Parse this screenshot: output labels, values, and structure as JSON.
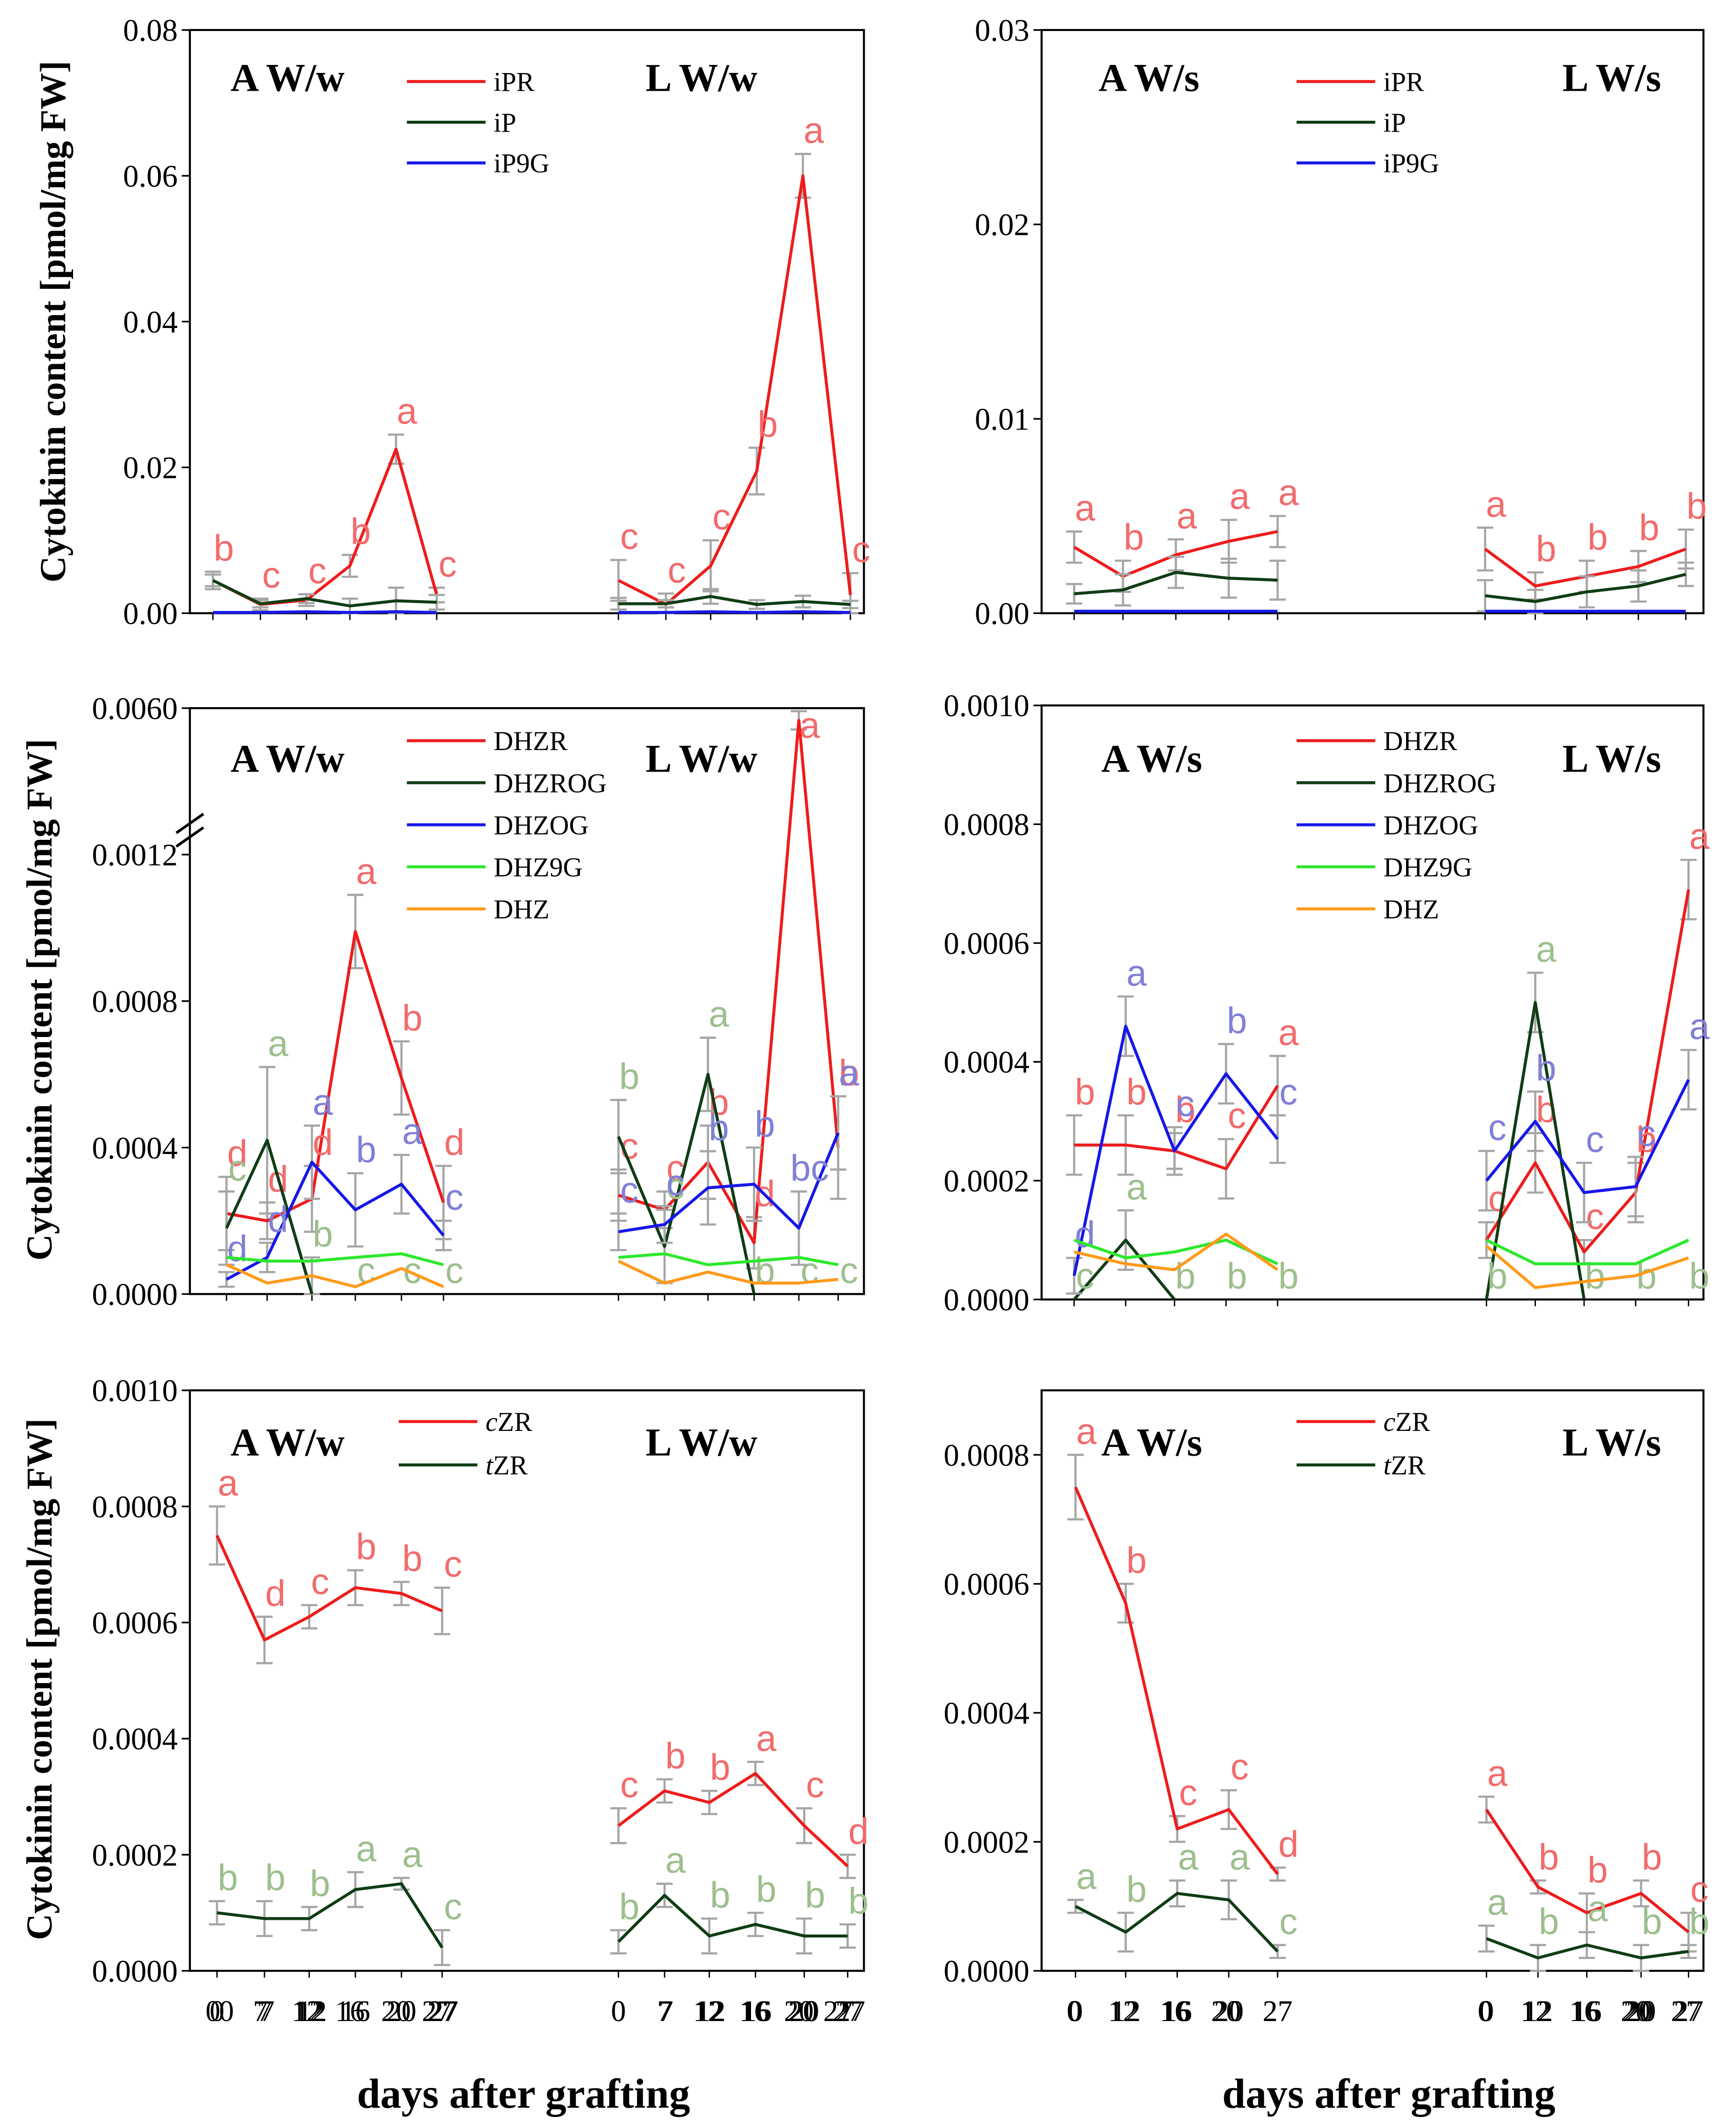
{
  "xlabel": "days after grafting",
  "ylabel": "Cytokinin content [pmol/mg FW]",
  "colors": {
    "red": "#ee1c1c",
    "darkgreen": "#0f3d14",
    "blue": "#1717e8",
    "lime": "#2de82d",
    "orange": "#ff9a1a",
    "err": "#a6a6a6",
    "lab_red": "#f26b6b",
    "lab_green": "#9dbf8e",
    "lab_blue": "#8080d8"
  },
  "chart_data": [
    {
      "type": "line",
      "panel": "iP-type, W/w",
      "title_a": "A W/w",
      "title_l": "L W/w",
      "ylim": [
        0,
        0.08
      ],
      "yticks": [
        "0.00",
        "0.02",
        "0.04",
        "0.06",
        "0.08"
      ],
      "yvals": [
        0,
        0.02,
        0.04,
        0.06,
        0.08
      ],
      "categories_a": [
        "0",
        "7",
        "12",
        "16",
        "20",
        "27"
      ],
      "categories_l": [
        "0",
        "7",
        "12",
        "16",
        "20",
        "27"
      ],
      "legend": [
        "iPR",
        "iP",
        "iP9G"
      ],
      "series": [
        {
          "name": "iPR",
          "color": "red",
          "a": [
            0.0045,
            0.0012,
            0.0018,
            0.0065,
            0.0225,
            0.0025
          ],
          "l": [
            0.0045,
            0.0012,
            0.0065,
            0.0195,
            0.06,
            0.0025
          ],
          "err_a": [
            0.0012,
            0.0008,
            0.0008,
            0.0015,
            0.002,
            0.001
          ],
          "err_l": [
            0.0028,
            0.0015,
            0.0035,
            0.0032,
            0.003,
            0.003
          ],
          "labels_a": [
            "b",
            "c",
            "c",
            "b",
            "a",
            "c"
          ],
          "labels_l": [
            "c",
            "c",
            "c",
            "b",
            "a",
            "c"
          ]
        },
        {
          "name": "iP",
          "color": "darkgreen",
          "a": [
            0.0045,
            0.0013,
            0.002,
            0.001,
            0.0017,
            0.0015
          ],
          "l": [
            0.0013,
            0.0013,
            0.0023,
            0.0012,
            0.0016,
            0.0012
          ],
          "err_a": [
            0.0008,
            0.0005,
            0.0006,
            0.001,
            0.0018,
            0.001
          ],
          "err_l": [
            0.0008,
            0.0005,
            0.001,
            0.0006,
            0.0008,
            0.0005
          ]
        },
        {
          "name": "iP9G",
          "color": "blue",
          "a": [
            0.0001,
            0.0001,
            0.0002,
            0.0001,
            0.0002,
            0.0001
          ],
          "l": [
            0.0001,
            0.0001,
            0.0002,
            0.0001,
            0.0002,
            0.0001
          ]
        }
      ]
    },
    {
      "type": "line",
      "panel": "iP-type, W/s",
      "title_a": "A W/s",
      "title_l": "L W/s",
      "ylim": [
        0,
        0.03
      ],
      "yticks": [
        "0.00",
        "0.01",
        "0.02",
        "0.03"
      ],
      "yvals": [
        0,
        0.01,
        0.02,
        0.03
      ],
      "categories_a": [
        "0",
        "12",
        "16",
        "20",
        "27"
      ],
      "categories_l": [
        "0",
        "12",
        "16",
        "20",
        "27"
      ],
      "legend": [
        "iPR",
        "iP",
        "iP9G"
      ],
      "series": [
        {
          "name": "iPR",
          "color": "red",
          "a": [
            0.0034,
            0.0019,
            0.003,
            0.0037,
            0.0042
          ],
          "l": [
            0.0033,
            0.0014,
            0.0019,
            0.0024,
            0.0033
          ],
          "err_a": [
            0.0008,
            0.0008,
            0.0008,
            0.0011,
            0.0008
          ],
          "err_l": [
            0.0011,
            0.0007,
            0.0008,
            0.0008,
            0.001
          ],
          "labels_a": [
            "a",
            "b",
            "a",
            "a",
            "a"
          ],
          "labels_l": [
            "a",
            "b",
            "b",
            "b",
            "b"
          ]
        },
        {
          "name": "iP",
          "color": "darkgreen",
          "a": [
            0.001,
            0.0012,
            0.0021,
            0.0018,
            0.0017
          ],
          "l": [
            0.0009,
            0.0006,
            0.0011,
            0.0014,
            0.002
          ],
          "err_a": [
            0.0005,
            0.0008,
            0.0008,
            0.001,
            0.001
          ],
          "err_l": [
            0.0008,
            0.0006,
            0.0008,
            0.0008,
            0.0006
          ]
        },
        {
          "name": "iP9G",
          "color": "blue",
          "a": [
            0.0001,
            0.0001,
            0.0001,
            0.0001,
            0.0001
          ],
          "l": [
            0.0001,
            0.0001,
            0.0001,
            0.0001,
            0.0001
          ]
        }
      ]
    },
    {
      "type": "line",
      "panel": "DHZ-type, W/w (broken y axis)",
      "title_a": "A W/w",
      "title_l": "L W/w",
      "ylim": [
        0,
        0.006
      ],
      "axis_break": [
        0.0012,
        0.006
      ],
      "yticks": [
        "0.0000",
        "0.0004",
        "0.0008",
        "0.0012",
        "0.0060"
      ],
      "yvals": [
        0,
        0.0004,
        0.0008,
        0.0012,
        0.006
      ],
      "categories_a": [
        "0",
        "7",
        "12",
        "16",
        "20",
        "27"
      ],
      "categories_l": [
        "0",
        "7",
        "12",
        "16",
        "20",
        "27"
      ],
      "legend": [
        "DHZR",
        "DHZROG",
        "DHZOG",
        "DHZ9G",
        "DHZ"
      ],
      "series": [
        {
          "name": "DHZR",
          "color": "red",
          "a": [
            0.00022,
            0.0002,
            0.00026,
            0.00099,
            0.00059,
            0.00025
          ],
          "l": [
            0.00027,
            0.00023,
            0.00036,
            0.00014,
            0.0056,
            0.0004
          ],
          "err_a": [
            0.0001,
            5e-05,
            9e-05,
            0.0001,
            0.0001,
            0.0001
          ],
          "err_l": [
            7e-05,
            5e-05,
            0.0001,
            7e-05,
            0.0003,
            0.00014
          ],
          "labels_a": [
            "d",
            "d",
            "d",
            "a",
            "b",
            "d"
          ],
          "labels_l": [
            "c",
            "c",
            "b",
            "d",
            "a",
            "b"
          ]
        },
        {
          "name": "DHZROG",
          "color": "darkgreen",
          "a": [
            0.00018,
            0.00042,
            0.0,
            null,
            null,
            null
          ],
          "l": [
            0.00043,
            0.00013,
            0.0006,
            0.0,
            null,
            null
          ],
          "err_a": [
            0.0001,
            0.0002,
            0.0001,
            0,
            0,
            0
          ],
          "err_l": [
            0.0001,
            0.0001,
            0.0001,
            0,
            0,
            0
          ],
          "labels_a": [
            "c",
            "a",
            "b",
            "c",
            "c",
            "c"
          ],
          "labels_l": [
            "b",
            "c",
            "a",
            "b",
            "c",
            "c"
          ]
        },
        {
          "name": "DHZOG",
          "color": "blue",
          "a": [
            4e-05,
            0.0001,
            0.00036,
            0.00023,
            0.0003,
            0.00016
          ],
          "l": [
            0.00017,
            0.00019,
            0.00029,
            0.0003,
            0.00018,
            0.00044
          ],
          "err_a": [
            2e-05,
            4e-05,
            0.0001,
            0.0001,
            8e-05,
            4e-05
          ],
          "err_l": [
            5e-05,
            5e-05,
            0.0001,
            0.0001,
            0.0001,
            0.0001
          ],
          "labels_a": [
            "d",
            "d",
            "a",
            "b",
            "a",
            "c"
          ],
          "labels_l": [
            "c",
            "c",
            "b",
            "b",
            "bc",
            "a"
          ]
        },
        {
          "name": "DHZ9G",
          "color": "lime",
          "a": [
            0.0001,
            9e-05,
            9e-05,
            0.0001,
            0.00011,
            8e-05
          ],
          "l": [
            0.0001,
            0.00011,
            8e-05,
            9e-05,
            0.0001,
            8e-05
          ]
        },
        {
          "name": "DHZ",
          "color": "orange",
          "a": [
            8e-05,
            3e-05,
            5e-05,
            2e-05,
            7e-05,
            2e-05
          ],
          "l": [
            9e-05,
            3e-05,
            6e-05,
            3e-05,
            3e-05,
            4e-05
          ]
        }
      ]
    },
    {
      "type": "line",
      "panel": "DHZ-type, W/s",
      "title_a": "A W/s",
      "title_l": "L W/s",
      "ylim": [
        0,
        0.001
      ],
      "yticks": [
        "0.0000",
        "0.0002",
        "0.0004",
        "0.0006",
        "0.0008",
        "0.0010"
      ],
      "yvals": [
        0,
        0.0002,
        0.0004,
        0.0006,
        0.0008,
        0.001
      ],
      "categories_a": [
        "0",
        "12",
        "16",
        "20",
        "27"
      ],
      "categories_l": [
        "0",
        "12",
        "16",
        "20",
        "27"
      ],
      "legend": [
        "DHZR",
        "DHZROG",
        "DHZOG",
        "DHZ9G",
        "DHZ"
      ],
      "series": [
        {
          "name": "DHZR",
          "color": "red",
          "a": [
            0.00026,
            0.00026,
            0.00025,
            0.00022,
            0.00036
          ],
          "l": [
            0.0001,
            0.00023,
            8e-05,
            0.00018,
            0.00069
          ],
          "err_a": [
            5e-05,
            5e-05,
            3e-05,
            5e-05,
            5e-05
          ],
          "err_l": [
            3e-05,
            5e-05,
            2e-05,
            5e-05,
            5e-05
          ],
          "labels_a": [
            "b",
            "b",
            "b",
            "c",
            "a"
          ],
          "labels_l": [
            "c",
            "b",
            "c",
            "b",
            "a"
          ]
        },
        {
          "name": "DHZROG",
          "color": "darkgreen",
          "a": [
            0.0,
            0.0001,
            0.0,
            null,
            null
          ],
          "l": [
            0.0,
            0.0005,
            0.0,
            null,
            null
          ],
          "err_a": [
            0,
            5e-05,
            0,
            0,
            0
          ],
          "err_l": [
            0,
            5e-05,
            0,
            0,
            0
          ],
          "labels_a": [
            "c",
            "a",
            "b",
            "b",
            "b"
          ],
          "labels_l": [
            "b",
            "a",
            "b",
            "b",
            "b"
          ]
        },
        {
          "name": "DHZOG",
          "color": "blue",
          "a": [
            4e-05,
            0.00046,
            0.00025,
            0.00038,
            0.00027
          ],
          "l": [
            0.0002,
            0.0003,
            0.00018,
            0.00019,
            0.00037
          ],
          "err_a": [
            3e-05,
            5e-05,
            4e-05,
            5e-05,
            4e-05
          ],
          "err_l": [
            5e-05,
            5e-05,
            5e-05,
            5e-05,
            5e-05
          ],
          "labels_a": [
            "d",
            "a",
            "c",
            "b",
            "c"
          ],
          "labels_l": [
            "c",
            "b",
            "c",
            "c",
            "a"
          ]
        },
        {
          "name": "DHZ9G",
          "color": "lime",
          "a": [
            0.0001,
            7e-05,
            8e-05,
            0.0001,
            6e-05
          ],
          "l": [
            0.0001,
            6e-05,
            6e-05,
            6e-05,
            0.0001
          ]
        },
        {
          "name": "DHZ",
          "color": "orange",
          "a": [
            8e-05,
            6e-05,
            5e-05,
            0.00011,
            5e-05
          ],
          "l": [
            9e-05,
            2e-05,
            3e-05,
            4e-05,
            7e-05
          ]
        }
      ]
    },
    {
      "type": "line",
      "panel": "ZR, W/w",
      "title_a": "A W/w",
      "title_l": "L W/w",
      "ylim": [
        0,
        0.001
      ],
      "yticks": [
        "0.0000",
        "0.0002",
        "0.0004",
        "0.0006",
        "0.0008",
        "0.0010"
      ],
      "yvals": [
        0,
        0.0002,
        0.0004,
        0.0006,
        0.0008,
        0.001
      ],
      "categories_a": [
        "0",
        "7",
        "12",
        "16",
        "20",
        "27"
      ],
      "categories_l": [
        "0",
        "7",
        "12",
        "16",
        "20",
        "27"
      ],
      "legend": [
        "cZR",
        "tZR"
      ],
      "series": [
        {
          "name": "cZR",
          "color": "red",
          "a": [
            0.00075,
            0.00057,
            0.00061,
            0.00066,
            0.00065,
            0.00062
          ],
          "l": [
            0.00025,
            0.00031,
            0.00029,
            0.00034,
            0.00025,
            0.00018
          ],
          "err_a": [
            5e-05,
            4e-05,
            2e-05,
            3e-05,
            2e-05,
            4e-05
          ],
          "err_l": [
            3e-05,
            2e-05,
            2e-05,
            2e-05,
            3e-05,
            2e-05
          ],
          "labels_a": [
            "a",
            "d",
            "c",
            "b",
            "b",
            "c"
          ],
          "labels_l": [
            "c",
            "b",
            "b",
            "a",
            "c",
            "d"
          ]
        },
        {
          "name": "tZR",
          "color": "darkgreen",
          "a": [
            0.0001,
            9e-05,
            9e-05,
            0.00014,
            0.00015,
            4e-05
          ],
          "l": [
            5e-05,
            0.00013,
            6e-05,
            8e-05,
            6e-05,
            6e-05
          ],
          "err_a": [
            2e-05,
            3e-05,
            2e-05,
            3e-05,
            1e-05,
            3e-05
          ],
          "err_l": [
            2e-05,
            2e-05,
            3e-05,
            2e-05,
            3e-05,
            2e-05
          ],
          "labels_a": [
            "b",
            "b",
            "b",
            "a",
            "a",
            "c"
          ],
          "labels_l": [
            "b",
            "a",
            "b",
            "b",
            "b",
            "b"
          ]
        }
      ]
    },
    {
      "type": "line",
      "panel": "ZR, W/s",
      "title_a": "A W/s",
      "title_l": "L W/s",
      "ylim": [
        0,
        0.0009
      ],
      "yticks": [
        "0.0000",
        "0.0002",
        "0.0004",
        "0.0006",
        "0.0008"
      ],
      "yvals": [
        0,
        0.0002,
        0.0004,
        0.0006,
        0.0008
      ],
      "categories_a": [
        "0",
        "12",
        "16",
        "20",
        "27"
      ],
      "categories_l": [
        "0",
        "12",
        "16",
        "20",
        "27"
      ],
      "legend": [
        "cZR",
        "tZR"
      ],
      "series": [
        {
          "name": "cZR",
          "color": "red",
          "a": [
            0.00075,
            0.00057,
            0.00022,
            0.00025,
            0.00015
          ],
          "l": [
            0.00025,
            0.00013,
            9e-05,
            0.00012,
            6e-05
          ],
          "err_a": [
            5e-05,
            3e-05,
            2e-05,
            3e-05,
            1e-05
          ],
          "err_l": [
            2e-05,
            1e-05,
            3e-05,
            2e-05,
            3e-05
          ],
          "labels_a": [
            "a",
            "b",
            "c",
            "c",
            "d"
          ],
          "labels_l": [
            "a",
            "b",
            "b",
            "b",
            "c"
          ]
        },
        {
          "name": "tZR",
          "color": "darkgreen",
          "a": [
            0.0001,
            6e-05,
            0.00012,
            0.00011,
            3e-05
          ],
          "l": [
            5e-05,
            2e-05,
            4e-05,
            2e-05,
            3e-05
          ],
          "err_a": [
            1e-05,
            3e-05,
            2e-05,
            3e-05,
            1e-05
          ],
          "err_l": [
            2e-05,
            2e-05,
            2e-05,
            2e-05,
            1e-05
          ],
          "labels_a": [
            "a",
            "b",
            "a",
            "a",
            "c"
          ],
          "labels_l": [
            "a",
            "b",
            "a",
            "b",
            "b"
          ]
        }
      ]
    }
  ]
}
